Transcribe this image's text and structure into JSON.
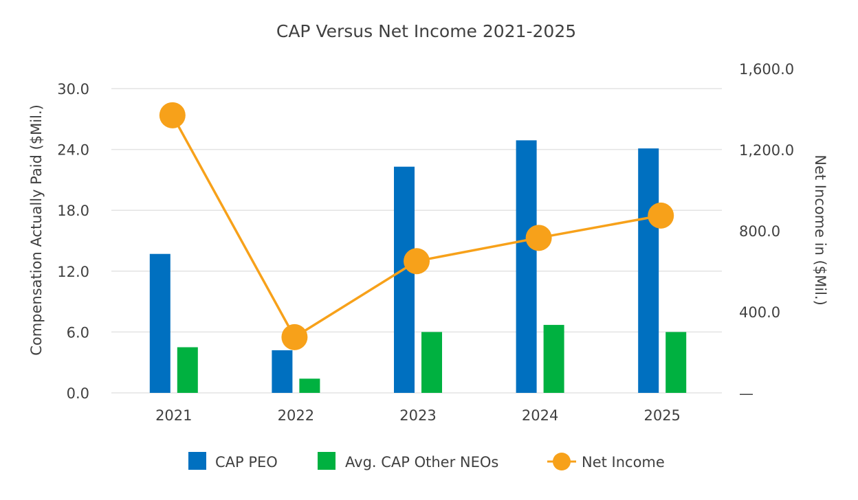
{
  "chart_data": {
    "type": "bar",
    "title": "CAP Versus Net Income 2021-2025",
    "categories": [
      "2021",
      "2022",
      "2023",
      "2024",
      "2025"
    ],
    "ylabel": "Compensation Actually Paid ($Mil.)",
    "y2label": "Net Income in ($Mil.)",
    "ylim": [
      0,
      30
    ],
    "y2lim": [
      0,
      1600
    ],
    "yticks": [
      "0.0",
      "6.0",
      "12.0",
      "18.0",
      "24.0",
      "30.0"
    ],
    "y2ticks": [
      "—",
      "400.0",
      "800.0",
      "1,200.0",
      "1,600.0"
    ],
    "grid": true,
    "legend_position": "bottom",
    "series": [
      {
        "name": "CAP PEO",
        "type": "bar",
        "axis": "left",
        "color": "#0070c0",
        "values": [
          13.7,
          4.2,
          22.3,
          24.9,
          24.1
        ]
      },
      {
        "name": "Avg. CAP Other NEOs",
        "type": "bar",
        "axis": "left",
        "color": "#00b140",
        "values": [
          4.5,
          1.4,
          6.0,
          6.7,
          6.0
        ]
      },
      {
        "name": "Net Income",
        "type": "line",
        "axis": "right",
        "color": "#f7a11a",
        "values": [
          1370,
          275,
          650,
          765,
          875
        ]
      }
    ]
  }
}
